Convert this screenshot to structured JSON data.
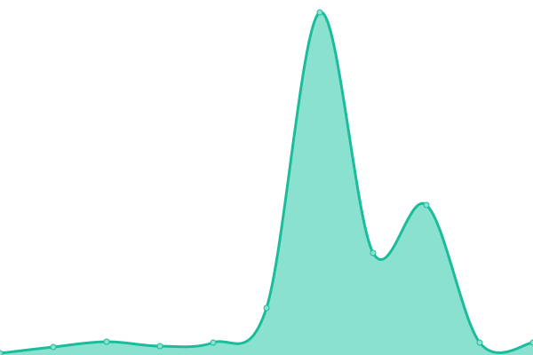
{
  "chart_data": {
    "type": "area",
    "title": "",
    "xlabel": "",
    "ylabel": "",
    "x": [
      0,
      1,
      2,
      3,
      4,
      5,
      6,
      7,
      8,
      9,
      10
    ],
    "values": [
      2,
      9,
      15,
      10,
      14,
      53,
      386,
      115,
      169,
      14,
      14
    ],
    "xlim": [
      0,
      10
    ],
    "ylim": [
      0,
      400
    ],
    "grid": false,
    "axes_visible": false,
    "legend": "none",
    "curve": "smooth",
    "colors": {
      "line": "#1abc9c",
      "fill": "#8ae1d0",
      "marker": "#8ae1d0"
    }
  }
}
